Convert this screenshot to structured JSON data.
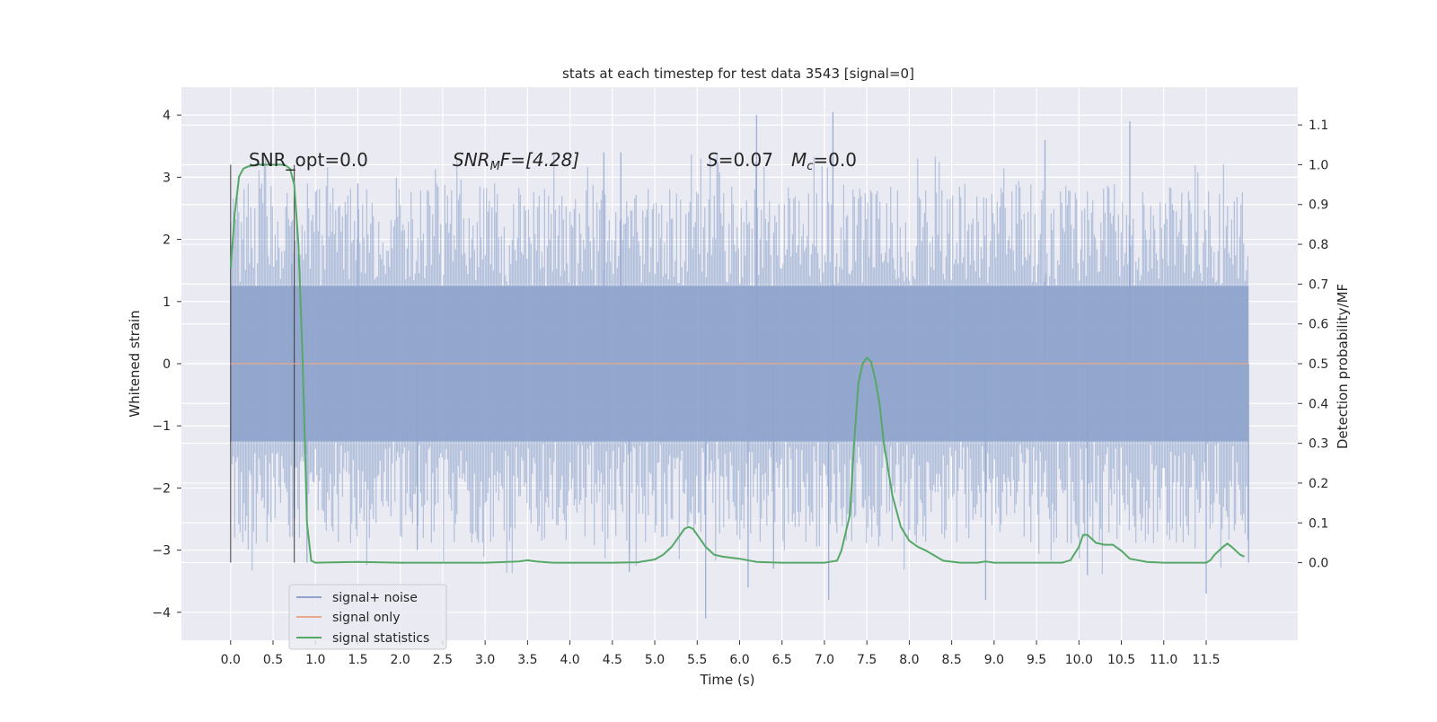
{
  "chart_data": {
    "type": "line",
    "title": "stats at each timestep for test data 3543 [signal=0]",
    "xlabel": "Time (s)",
    "ylabel_left": "Whitened strain",
    "ylabel_right": "Detection probability/MF",
    "xlim": [
      -0.58,
      12.58
    ],
    "ylim_left": [
      -4.45,
      4.45
    ],
    "ylim_right": [
      -0.195,
      1.195
    ],
    "grid": true,
    "x_ticks": [
      "0.0",
      "0.5",
      "1.0",
      "1.5",
      "2.0",
      "2.5",
      "3.0",
      "3.5",
      "4.0",
      "4.5",
      "5.0",
      "5.5",
      "6.0",
      "6.5",
      "7.0",
      "7.5",
      "8.0",
      "8.5",
      "9.0",
      "9.5",
      "10.0",
      "10.5",
      "11.0",
      "11.5"
    ],
    "y_left_ticks": [
      "4",
      "3",
      "2",
      "1",
      "0",
      "−1",
      "−2",
      "−3",
      "−4"
    ],
    "y_right_ticks": [
      "1.1",
      "1.0",
      "0.9",
      "0.8",
      "0.7",
      "0.6",
      "0.5",
      "0.4",
      "0.3",
      "0.2",
      "0.1",
      "0.0"
    ],
    "annotations": {
      "snr_opt": "SNR_opt=0.0",
      "snr_mf_main": "SNR",
      "snr_mf_sub": "M",
      "snr_mf_rest": "F=[4.28]",
      "s_var": "S",
      "s_val": "=0.07",
      "mc_var": "M",
      "mc_sub": "c",
      "mc_val": "=0.0"
    },
    "window_markers": {
      "x": [
        0.0,
        0.75
      ],
      "y_range": [
        -3.2,
        3.2
      ]
    },
    "noise_band": {
      "x_range": [
        0.0,
        12.0
      ],
      "core_amplitude": 1.25,
      "typical_peak": 2.3
    },
    "noise_spikes": [
      {
        "x": 0.72,
        "y": 1.6
      },
      {
        "x": 0.75,
        "y": -2.5
      },
      {
        "x": 0.9,
        "y": -3.2
      },
      {
        "x": 1.5,
        "y": 2.9
      },
      {
        "x": 2.2,
        "y": -3.0
      },
      {
        "x": 4.4,
        "y": 3.4
      },
      {
        "x": 4.6,
        "y": 3.4
      },
      {
        "x": 4.7,
        "y": -3.35
      },
      {
        "x": 5.6,
        "y": -4.1
      },
      {
        "x": 6.1,
        "y": -3.6
      },
      {
        "x": 6.2,
        "y": 4.0
      },
      {
        "x": 6.4,
        "y": -3.3
      },
      {
        "x": 7.05,
        "y": -3.8
      },
      {
        "x": 7.1,
        "y": 4.05
      },
      {
        "x": 8.9,
        "y": -3.8
      },
      {
        "x": 9.6,
        "y": 3.6
      },
      {
        "x": 10.1,
        "y": -3.4
      },
      {
        "x": 10.6,
        "y": 3.9
      },
      {
        "x": 11.5,
        "y": -3.7
      },
      {
        "x": 12.0,
        "y": -3.2
      }
    ],
    "series": [
      {
        "name": "signal+ noise",
        "color": "#8fa4cc",
        "axis": "left",
        "x": [],
        "values": []
      },
      {
        "name": "signal only",
        "color": "#e8a98c",
        "axis": "left",
        "x": [
          0.0,
          12.0
        ],
        "values": [
          0.0,
          0.0
        ]
      },
      {
        "name": "signal statistics",
        "color": "#55a868",
        "axis": "right",
        "x": [
          0.0,
          0.05,
          0.1,
          0.15,
          0.2,
          0.3,
          0.4,
          0.5,
          0.6,
          0.65,
          0.7,
          0.75,
          0.8,
          0.85,
          0.9,
          0.95,
          1.0,
          1.5,
          2.0,
          2.5,
          3.0,
          3.4,
          3.5,
          3.6,
          3.8,
          4.0,
          4.5,
          4.8,
          5.0,
          5.1,
          5.2,
          5.3,
          5.35,
          5.4,
          5.45,
          5.5,
          5.6,
          5.7,
          5.8,
          6.0,
          6.2,
          6.5,
          7.0,
          7.15,
          7.2,
          7.3,
          7.35,
          7.4,
          7.45,
          7.5,
          7.55,
          7.6,
          7.65,
          7.7,
          7.8,
          7.9,
          8.0,
          8.1,
          8.2,
          8.4,
          8.6,
          8.8,
          8.9,
          9.0,
          9.5,
          9.8,
          9.9,
          10.0,
          10.05,
          10.1,
          10.2,
          10.3,
          10.4,
          10.5,
          10.6,
          10.8,
          11.0,
          11.5,
          11.55,
          11.6,
          11.7,
          11.75,
          11.8,
          11.9,
          11.95
        ],
        "values": [
          0.74,
          0.88,
          0.97,
          0.99,
          0.995,
          1.0,
          1.0,
          1.0,
          1.0,
          0.998,
          0.99,
          0.95,
          0.8,
          0.5,
          0.1,
          0.005,
          0.0,
          0.002,
          0.0,
          0.0,
          0.0,
          0.003,
          0.006,
          0.003,
          0.0,
          0.0,
          0.0,
          0.001,
          0.008,
          0.02,
          0.04,
          0.07,
          0.085,
          0.09,
          0.085,
          0.07,
          0.04,
          0.02,
          0.015,
          0.01,
          0.002,
          0.0,
          0.0,
          0.005,
          0.03,
          0.12,
          0.3,
          0.45,
          0.5,
          0.515,
          0.505,
          0.46,
          0.4,
          0.3,
          0.17,
          0.09,
          0.055,
          0.04,
          0.03,
          0.005,
          0.0,
          0.0,
          0.003,
          0.0,
          0.0,
          0.0,
          0.006,
          0.04,
          0.07,
          0.07,
          0.05,
          0.045,
          0.045,
          0.03,
          0.01,
          0.002,
          0.0,
          0.0,
          0.006,
          0.02,
          0.04,
          0.048,
          0.04,
          0.02,
          0.015
        ]
      }
    ],
    "legend": {
      "placement": "lower-left"
    }
  }
}
